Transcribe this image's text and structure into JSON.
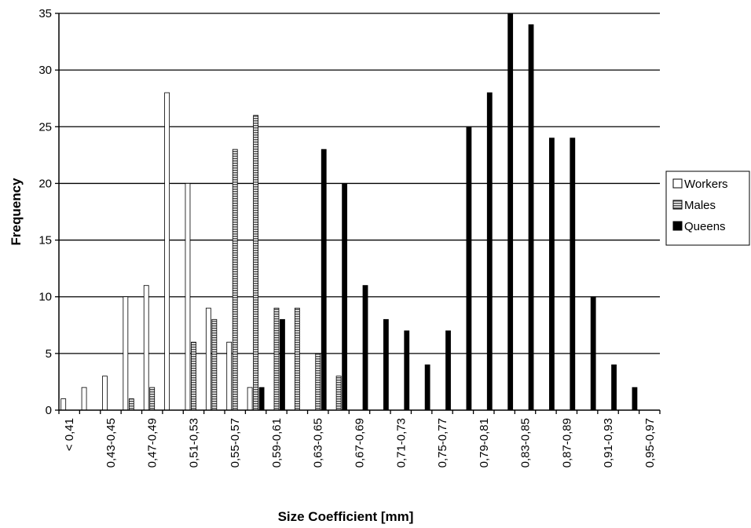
{
  "chart_data": {
    "type": "bar",
    "title": "",
    "xlabel": "Size Coefficient [mm]",
    "ylabel": "Frequency",
    "ylim": [
      0,
      35
    ],
    "yticks": [
      0,
      5,
      10,
      15,
      20,
      25,
      30,
      35
    ],
    "grid": "horizontal",
    "legend_position": "right",
    "categories": [
      "< 0,41",
      "0,41-0,43",
      "0,43-0,45",
      "0,45-0,47",
      "0,47-0,49",
      "0,49-0,51",
      "0,51-0,53",
      "0,53-0,55",
      "0,55-0,57",
      "0,57-0,59",
      "0,59-0,61",
      "0,61-0,63",
      "0,63-0,65",
      "0,65-0,67",
      "0,67-0,69",
      "0,69-0,71",
      "0,71-0,73",
      "0,73-0,75",
      "0,75-0,77",
      "0,77-0,79",
      "0,79-0,81",
      "0,81-0,83",
      "0,83-0,85",
      "0,85-0,87",
      "0,87-0,89",
      "0,89-0,91",
      "0,91-0,93",
      "0,93-0,95",
      "0,95-0,97"
    ],
    "visible_tick_labels": [
      "< 0,41",
      "0,43-0,45",
      "0,47-0,49",
      "0,51-0,53",
      "0,55-0,57",
      "0,59-0,61",
      "0,63-0,65",
      "0,67-0,69",
      "0,71-0,73",
      "0,75-0,77",
      "0,79-0,81",
      "0,83-0,85",
      "0,87-0,89",
      "0,91-0,93",
      "0,95-0,97"
    ],
    "series": [
      {
        "name": "Workers",
        "color": "#ffffff",
        "pattern": "open",
        "values": [
          1,
          2,
          3,
          10,
          11,
          28,
          20,
          9,
          6,
          2,
          0,
          0,
          0,
          0,
          0,
          0,
          0,
          0,
          0,
          0,
          0,
          0,
          0,
          0,
          0,
          0,
          0,
          0,
          0
        ]
      },
      {
        "name": "Males",
        "color": "#888888",
        "pattern": "striped",
        "values": [
          0,
          0,
          0,
          1,
          2,
          0,
          6,
          8,
          23,
          26,
          9,
          9,
          5,
          3,
          0,
          0,
          0,
          0,
          0,
          0,
          0,
          0,
          0,
          0,
          0,
          0,
          0,
          0,
          0
        ]
      },
      {
        "name": "Queens",
        "color": "#000000",
        "pattern": "solid",
        "values": [
          0,
          0,
          0,
          0,
          0,
          0,
          0,
          0,
          0,
          2,
          8,
          0,
          23,
          20,
          11,
          8,
          7,
          4,
          7,
          25,
          28,
          35,
          34,
          24,
          24,
          10,
          4,
          2,
          0
        ]
      }
    ]
  }
}
